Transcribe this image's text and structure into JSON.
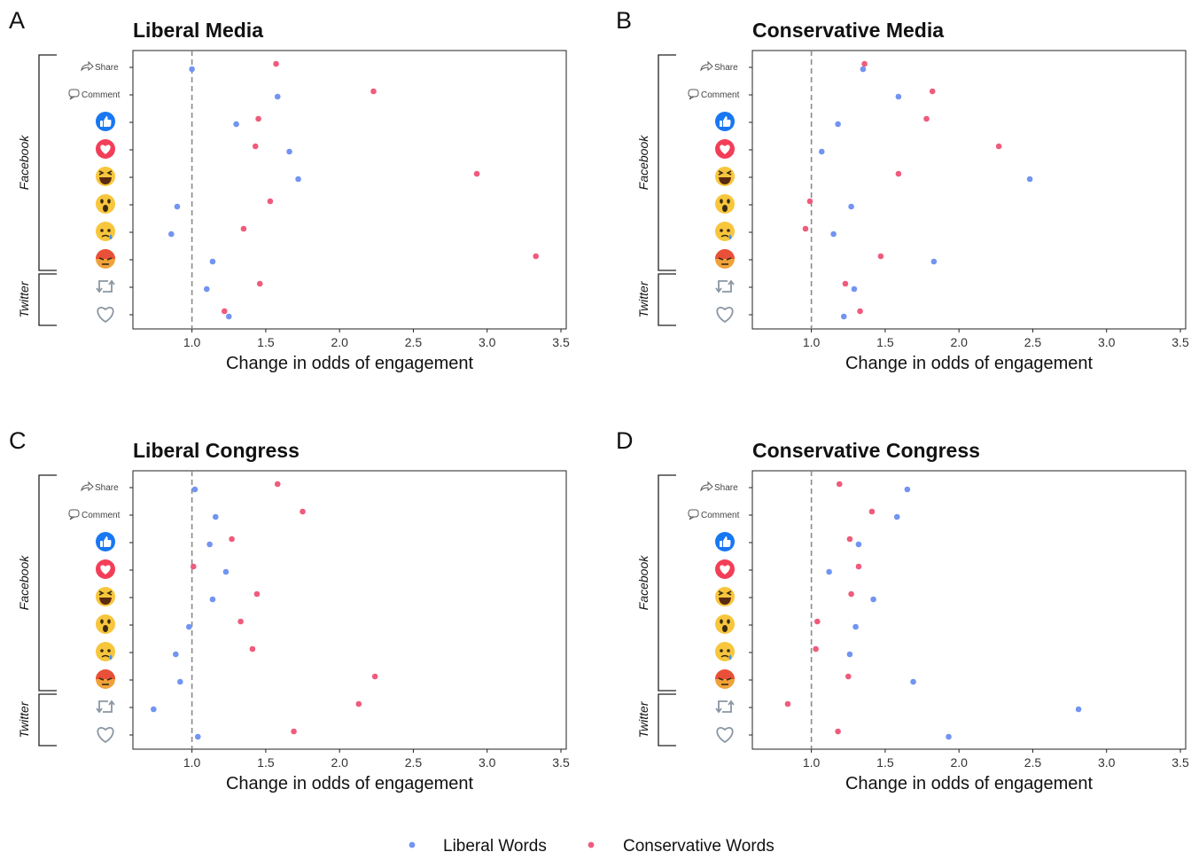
{
  "colors": {
    "liberal": "#7294f2",
    "conservative": "#ef5b7c",
    "frame": "#222222",
    "refline": "#8a8a8a"
  },
  "row_labels": {
    "share": "Share",
    "comment": "Comment",
    "group_facebook": "Facebook",
    "group_twitter": "Twitter"
  },
  "row_icons": [
    "share-icon",
    "comment-icon",
    "like-icon",
    "love-icon",
    "haha-icon",
    "wow-icon",
    "sad-icon",
    "angry-icon",
    "retweet-icon",
    "favorite-heart-icon"
  ],
  "legend": {
    "liberal": "Liberal Words",
    "conservative": "Conservative Words"
  },
  "chart_data": [
    {
      "panel_letter": "A",
      "type": "scatter",
      "title": "Liberal Media",
      "xlabel": "Change in odds of engagement",
      "xlim": [
        0.6,
        3.5
      ],
      "xticks": [
        "1.0",
        "1.5",
        "2.0",
        "2.5",
        "3.0",
        "3.5"
      ],
      "reference_x": 1.0,
      "categories": [
        "Share",
        "Comment",
        "Like",
        "Love",
        "Haha",
        "Wow",
        "Sad",
        "Angry",
        "Retweet",
        "Favorite"
      ],
      "series": [
        {
          "name": "Liberal Words",
          "values": [
            1.0,
            1.58,
            1.3,
            1.66,
            1.72,
            0.9,
            0.86,
            1.14,
            1.1,
            1.25
          ]
        },
        {
          "name": "Conservative Words",
          "values": [
            1.57,
            2.23,
            1.45,
            1.43,
            2.93,
            1.53,
            1.35,
            3.33,
            1.46,
            1.22
          ]
        }
      ]
    },
    {
      "panel_letter": "B",
      "type": "scatter",
      "title": "Conservative Media",
      "xlabel": "Change in odds of engagement",
      "xlim": [
        0.6,
        3.5
      ],
      "xticks": [
        "1.0",
        "1.5",
        "2.0",
        "2.5",
        "3.0",
        "3.5"
      ],
      "reference_x": 1.0,
      "categories": [
        "Share",
        "Comment",
        "Like",
        "Love",
        "Haha",
        "Wow",
        "Sad",
        "Angry",
        "Retweet",
        "Favorite"
      ],
      "series": [
        {
          "name": "Liberal Words",
          "values": [
            1.35,
            1.59,
            1.18,
            1.07,
            2.48,
            1.27,
            1.15,
            1.83,
            1.29,
            1.22
          ]
        },
        {
          "name": "Conservative Words",
          "values": [
            1.36,
            1.82,
            1.78,
            2.27,
            1.59,
            0.99,
            0.96,
            1.47,
            1.23,
            1.33
          ]
        }
      ]
    },
    {
      "panel_letter": "C",
      "type": "scatter",
      "title": "Liberal Congress",
      "xlabel": "Change in odds of engagement",
      "xlim": [
        0.6,
        3.5
      ],
      "xticks": [
        "1.0",
        "1.5",
        "2.0",
        "2.5",
        "3.0",
        "3.5"
      ],
      "reference_x": 1.0,
      "categories": [
        "Share",
        "Comment",
        "Like",
        "Love",
        "Haha",
        "Wow",
        "Sad",
        "Angry",
        "Retweet",
        "Favorite"
      ],
      "series": [
        {
          "name": "Liberal Words",
          "values": [
            1.02,
            1.16,
            1.12,
            1.23,
            1.14,
            0.98,
            0.89,
            0.92,
            0.74,
            1.04
          ]
        },
        {
          "name": "Conservative Words",
          "values": [
            1.58,
            1.75,
            1.27,
            1.01,
            1.44,
            1.33,
            1.41,
            2.24,
            2.13,
            1.69
          ]
        }
      ]
    },
    {
      "panel_letter": "D",
      "type": "scatter",
      "title": "Conservative Congress",
      "xlabel": "Change in odds of engagement",
      "xlim": [
        0.6,
        3.5
      ],
      "xticks": [
        "1.0",
        "1.5",
        "2.0",
        "2.5",
        "3.0",
        "3.5"
      ],
      "reference_x": 1.0,
      "categories": [
        "Share",
        "Comment",
        "Like",
        "Love",
        "Haha",
        "Wow",
        "Sad",
        "Angry",
        "Retweet",
        "Favorite"
      ],
      "series": [
        {
          "name": "Liberal Words",
          "values": [
            1.65,
            1.58,
            1.32,
            1.12,
            1.42,
            1.3,
            1.26,
            1.69,
            2.81,
            1.93
          ]
        },
        {
          "name": "Conservative Words",
          "values": [
            1.19,
            1.41,
            1.26,
            1.32,
            1.27,
            1.04,
            1.03,
            1.25,
            0.84,
            1.18
          ]
        }
      ]
    }
  ]
}
